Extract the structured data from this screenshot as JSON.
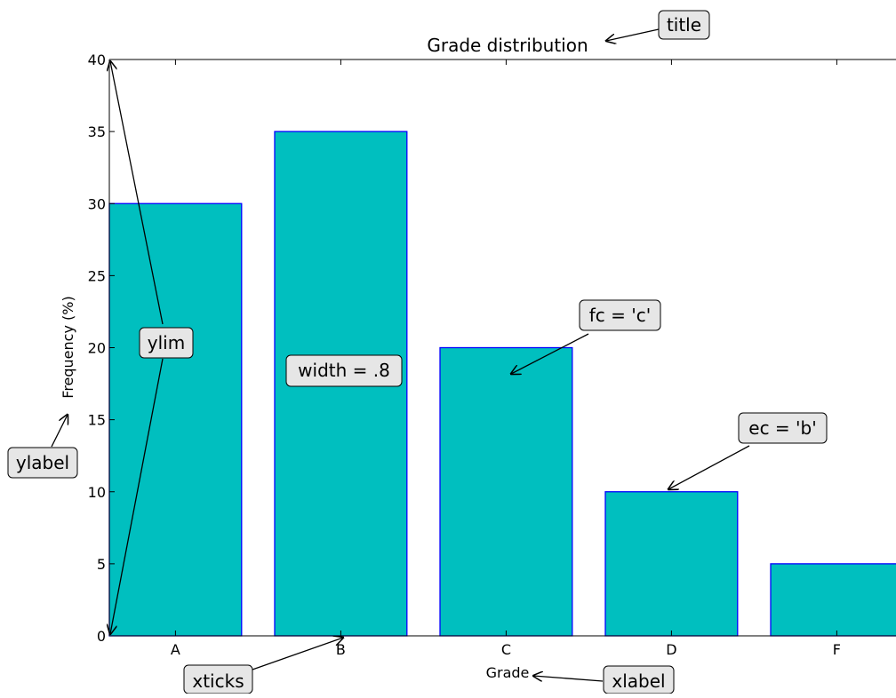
{
  "chart_data": {
    "type": "bar",
    "title": "Grade distribution",
    "xlabel": "Grade",
    "ylabel": "Frequency (%)",
    "categories": [
      "A",
      "B",
      "C",
      "D",
      "F"
    ],
    "values": [
      30,
      35,
      20,
      10,
      5
    ],
    "ylim": [
      0,
      40
    ],
    "yticks": [
      0,
      5,
      10,
      15,
      20,
      25,
      30,
      35,
      40
    ],
    "bar_width": 0.8,
    "bar_fill": "#00bfbf",
    "bar_edge": "#0000ff",
    "grid": false
  },
  "annotations": {
    "title_note": "title",
    "ylim_note": "ylim",
    "ylabel_note": "ylabel",
    "width_note": "width = .8",
    "fc_note": "fc = 'c'",
    "ec_note": "ec = 'b'",
    "xticks_note": "xticks",
    "xlabel_note": "xlabel"
  },
  "colors": {
    "annotation_box_fill": "#e6e6e6",
    "axis": "#000000"
  }
}
